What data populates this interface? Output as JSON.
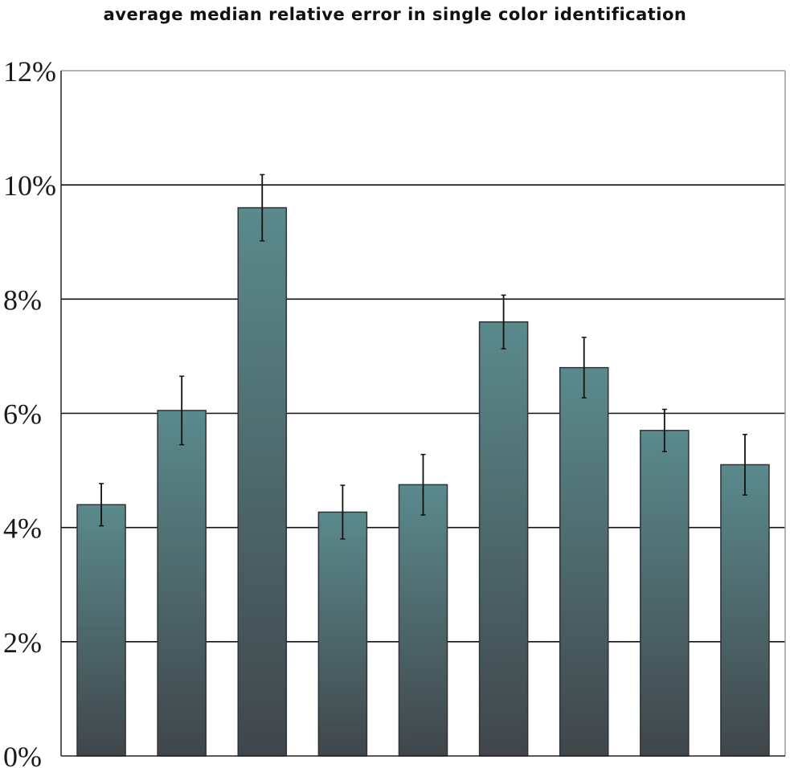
{
  "chart_data": {
    "type": "bar",
    "title": "average median relative error in single color identification",
    "xlabel": "",
    "ylabel": "",
    "ylim": [
      0,
      12
    ],
    "y_tick_labels": [
      "0%",
      "2%",
      "4%",
      "6%",
      "8%",
      "10%",
      "12%"
    ],
    "y_tick_values": [
      0,
      2,
      4,
      6,
      8,
      10,
      12
    ],
    "grid": "horizontal",
    "legend": "none",
    "series": [
      {
        "values": [
          4.4,
          6.05,
          9.6,
          4.27,
          4.75,
          7.6,
          6.8,
          5.7,
          5.1
        ],
        "error": [
          0.37,
          0.6,
          0.58,
          0.47,
          0.53,
          0.47,
          0.53,
          0.37,
          0.53
        ]
      }
    ],
    "colors": {
      "bar_top": "#5a8a8c",
      "bar_bottom": "#40464b",
      "bar_outline": "#2f3336",
      "grid": "#111111",
      "frame": "#9a9a9a",
      "error_bar": "#111111"
    }
  }
}
